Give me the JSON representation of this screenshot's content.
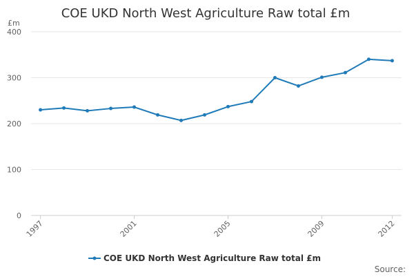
{
  "chart_data": {
    "type": "line",
    "title": "COE UKD North West Agriculture Raw total £m",
    "ylabel": "£m",
    "xlabel": "",
    "x": [
      1997,
      1998,
      1999,
      2000,
      2001,
      2002,
      2003,
      2004,
      2005,
      2006,
      2007,
      2008,
      2009,
      2010,
      2011,
      2012
    ],
    "series": [
      {
        "name": "COE UKD North West Agriculture Raw total £m",
        "values": [
          230,
          234,
          228,
          233,
          236,
          219,
          207,
          219,
          237,
          248,
          300,
          282,
          301,
          311,
          340,
          337
        ]
      }
    ],
    "xticks": [
      "1997",
      "2001",
      "2005",
      "2009",
      "2012"
    ],
    "yticks": [
      "0",
      "100",
      "200",
      "300",
      "400"
    ],
    "ylim": [
      0,
      400
    ],
    "grid": true,
    "legend": "bottom-center",
    "colors": {
      "series": "#1f7ab8",
      "grid": "#e6e6e6",
      "axis": "#cccccc"
    },
    "source_label": "Source:"
  }
}
